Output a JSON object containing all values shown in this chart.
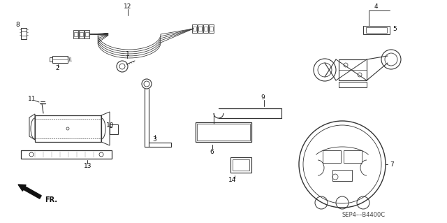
{
  "background_color": "#ffffff",
  "diagram_code": "SEP4––B4400C",
  "line_color": "#333333",
  "label_color": "#111111"
}
